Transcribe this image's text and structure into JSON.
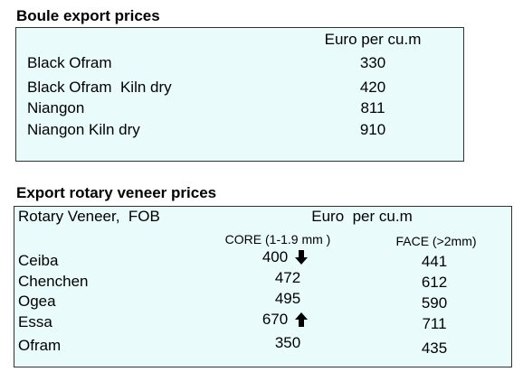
{
  "section1": {
    "title": "Boule export prices",
    "header": "Euro per cu.m",
    "rows": [
      [
        "Black Ofram",
        "330"
      ],
      [
        "Black Ofram  Kiln dry",
        "420"
      ],
      [
        "Niangon",
        "811"
      ],
      [
        "Niangon Kiln dry",
        "910"
      ]
    ]
  },
  "section2": {
    "title": "Export rotary veneer prices",
    "header_left": "Rotary Veneer,  FOB",
    "header_right": "Euro  per cu.m",
    "subheader_core": "CORE (1-1.9 mm )",
    "subheader_face": "FACE (>2mm)",
    "rows": [
      [
        "Ceiba",
        "400",
        "441"
      ],
      [
        "Chenchen",
        "472",
        "612"
      ],
      [
        "Ogea",
        "495",
        "590"
      ],
      [
        "Essa",
        "670",
        "711"
      ],
      [
        "Ofram",
        "350",
        "435"
      ]
    ]
  }
}
